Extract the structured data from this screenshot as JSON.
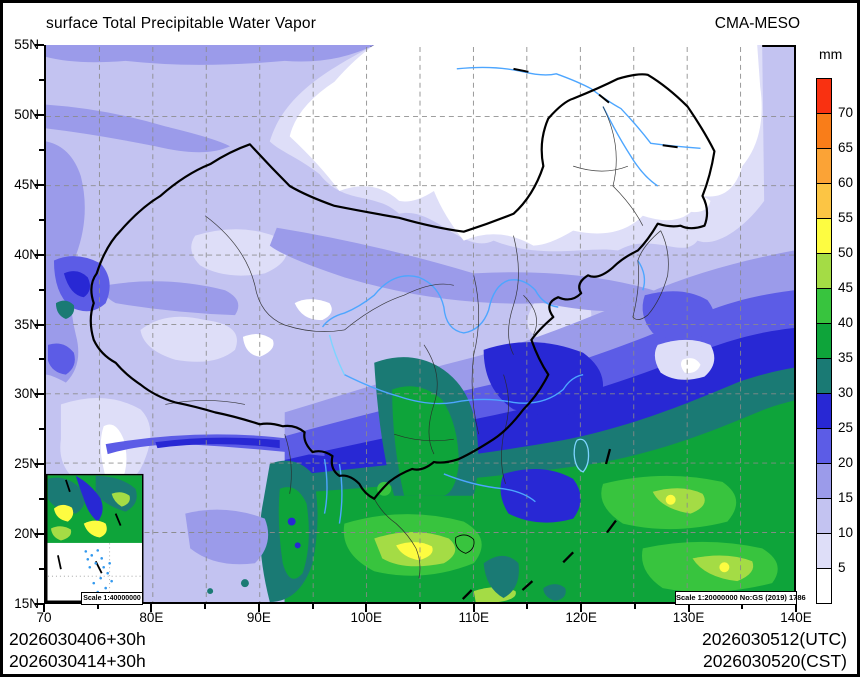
{
  "header": {
    "title": "surface Total Precipitable Water Vapor",
    "model": "CMA-MESO"
  },
  "colorbar": {
    "unit": "mm",
    "labels_top_to_bottom": [
      "70",
      "65",
      "60",
      "55",
      "50",
      "45",
      "40",
      "35",
      "30",
      "25",
      "20",
      "15",
      "10",
      "5"
    ],
    "palette_top_to_bottom": [
      "#f93111",
      "#f97d19",
      "#fba336",
      "#fcc544",
      "#fdfc41",
      "#a4dc45",
      "#38c43e",
      "#0ea43a",
      "#1a7a74",
      "#2828d4",
      "#5c5ce6",
      "#9b9bea",
      "#c3c3f1",
      "#dedef8",
      "#ffffff"
    ]
  },
  "axes": {
    "lat_labels": [
      "55N",
      "50N",
      "45N",
      "40N",
      "35N",
      "30N",
      "25N",
      "20N",
      "15N"
    ],
    "lon_labels": [
      "70",
      "80E",
      "90E",
      "100E",
      "110E",
      "120E",
      "130E",
      "140E"
    ]
  },
  "map": {
    "scale_main": "Scale 1:20000000 No:GS (2019) 1786",
    "scale_inset": "Scale 1:40000000",
    "colors": {
      "land_none": "#ffffff",
      "grid": "#8a8a8a",
      "border": "#000000",
      "river": "#4da6ff",
      "river_light": "#7dd4ff"
    }
  },
  "footer": {
    "left_line1": "2026030406+30h",
    "left_line2": "2026030414+30h",
    "right_line1": "2026030512(UTC)",
    "right_line2": "2026030520(CST)"
  }
}
